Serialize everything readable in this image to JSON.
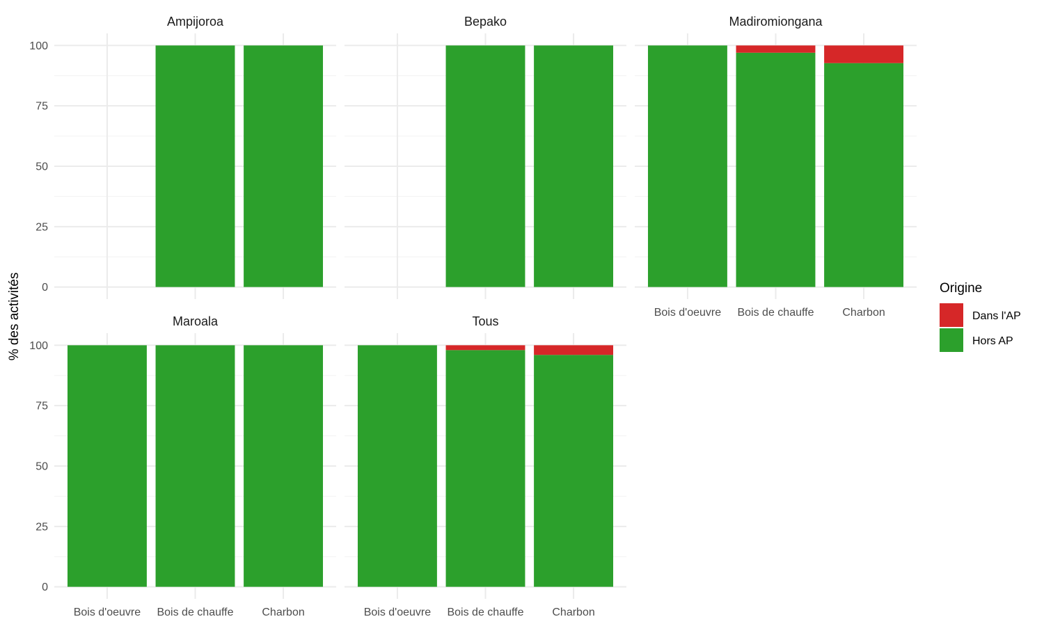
{
  "chart_data": {
    "type": "bar",
    "stacked": true,
    "ylabel": "% des activités",
    "xlabel": "",
    "ylim": [
      0,
      100
    ],
    "y_ticks": [
      0,
      25,
      50,
      75,
      100
    ],
    "grid": true,
    "categories": [
      "Bois d'oeuvre",
      "Bois de chauffe",
      "Charbon"
    ],
    "legend": {
      "title": "Origine",
      "placement": "right",
      "entries": [
        {
          "name": "Dans l'AP",
          "color": "#d62728"
        },
        {
          "name": "Hors AP",
          "color": "#2ca02c"
        }
      ]
    },
    "facets": [
      {
        "title": "Ampijoroa",
        "series": [
          {
            "name": "Hors AP",
            "values": [
              null,
              100,
              100
            ]
          },
          {
            "name": "Dans l'AP",
            "values": [
              null,
              0,
              0
            ]
          }
        ]
      },
      {
        "title": "Bepako",
        "series": [
          {
            "name": "Hors AP",
            "values": [
              null,
              100,
              100
            ]
          },
          {
            "name": "Dans l'AP",
            "values": [
              null,
              0,
              0
            ]
          }
        ]
      },
      {
        "title": "Madiromiongana",
        "series": [
          {
            "name": "Hors AP",
            "values": [
              100,
              97,
              92.7
            ]
          },
          {
            "name": "Dans l'AP",
            "values": [
              0,
              3,
              7.3
            ]
          }
        ]
      },
      {
        "title": "Maroala",
        "series": [
          {
            "name": "Hors AP",
            "values": [
              100,
              100,
              100
            ]
          },
          {
            "name": "Dans l'AP",
            "values": [
              0,
              0,
              0
            ]
          }
        ]
      },
      {
        "title": "Tous",
        "series": [
          {
            "name": "Hors AP",
            "values": [
              100,
              98,
              96
            ]
          },
          {
            "name": "Dans l'AP",
            "values": [
              0,
              2,
              4
            ]
          }
        ]
      }
    ]
  }
}
